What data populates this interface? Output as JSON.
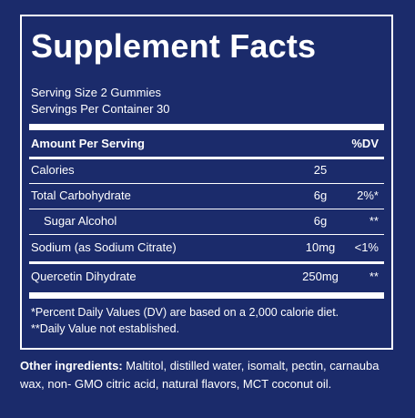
{
  "title": "Supplement Facts",
  "serving_size": "Serving Size 2 Gummies",
  "servings_per_container": "Servings Per Container 30",
  "header": {
    "amount": "Amount Per Serving",
    "dv": "%DV"
  },
  "rows": [
    {
      "name": "Calories",
      "amount": "25",
      "dv": ""
    },
    {
      "name": "Total Carbohydrate",
      "amount": "6g",
      "dv": "2%*"
    },
    {
      "name": "Sugar Alcohol",
      "amount": "6g",
      "dv": "**"
    },
    {
      "name": "Sodium (as Sodium Citrate)",
      "amount": "10mg",
      "dv": "<1%"
    },
    {
      "name": "Quercetin Dihydrate",
      "amount": "250mg",
      "dv": "**"
    }
  ],
  "footnotes": [
    "*Percent Daily Values (DV) are based on a 2,000 calorie diet.",
    "**Daily Value not established."
  ],
  "ingredients": {
    "label": "Other ingredients:",
    "text": " Maltitol, distilled water, isomalt, pectin, carnauba wax, non- GMO citric acid, natural flavors, MCT coconut oil."
  }
}
